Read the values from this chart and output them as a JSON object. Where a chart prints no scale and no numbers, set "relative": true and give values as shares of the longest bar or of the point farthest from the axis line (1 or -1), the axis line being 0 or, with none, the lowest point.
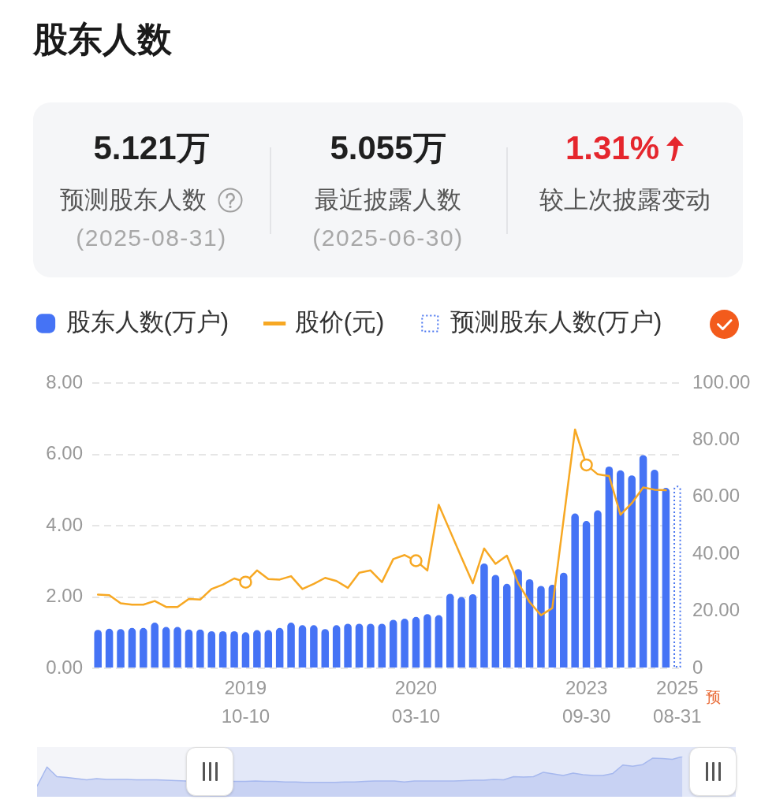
{
  "chart_data": [
    {
      "type": "other",
      "title": "股东人数",
      "annotations": [
        "5.121万",
        "预测股东人数",
        "(2025-08-31)",
        "5.055万",
        "最近披露人数",
        "(2025-06-30)",
        "1.31%",
        "较上次披露变动"
      ]
    },
    {
      "type": "bar",
      "categories": [
        null,
        null,
        null,
        null,
        null,
        null,
        null,
        null,
        null,
        null,
        null,
        null,
        null,
        "2019\n10-10",
        null,
        null,
        null,
        null,
        null,
        null,
        null,
        null,
        null,
        null,
        null,
        null,
        null,
        null,
        "2020\n03-10",
        null,
        null,
        null,
        null,
        null,
        null,
        null,
        null,
        null,
        null,
        null,
        null,
        null,
        null,
        "2023\n09-30",
        null,
        null,
        null,
        null,
        null,
        null,
        null,
        "2025\n08-31"
      ],
      "series": [
        {
          "name": "股东人数(万户)",
          "type": "bar",
          "color": "#4573f5",
          "values": [
            1.08,
            1.11,
            1.1,
            1.13,
            1.13,
            1.28,
            1.16,
            1.16,
            1.09,
            1.09,
            1.04,
            1.04,
            1.04,
            1.01,
            1.07,
            1.07,
            1.13,
            1.28,
            1.21,
            1.21,
            1.1,
            1.21,
            1.25,
            1.25,
            1.25,
            1.25,
            1.36,
            1.39,
            1.44,
            1.52,
            1.49,
            2.09,
            2.0,
            2.08,
            2.94,
            2.62,
            2.37,
            2.78,
            2.5,
            2.31,
            2.34,
            2.68,
            4.34,
            4.13,
            4.43,
            5.66,
            5.55,
            5.41,
            5.98,
            5.57,
            5.06,
            null
          ]
        },
        {
          "name": "股价(元)",
          "type": "line",
          "axis": "y2",
          "color": "#f7a823",
          "values": [
            25.8,
            25.6,
            22.8,
            22.3,
            22.3,
            23.6,
            21.5,
            21.5,
            24.3,
            24.1,
            27.8,
            29.3,
            31.5,
            30.2,
            34.3,
            31.3,
            31.1,
            32.3,
            27.8,
            29.6,
            31.7,
            30.6,
            28.2,
            33.5,
            34.3,
            30.2,
            38.3,
            39.7,
            37.7,
            34.3,
            57.3,
            48.1,
            38.9,
            29.8,
            42.0,
            36.6,
            39.5,
            29.8,
            23.2,
            18.6,
            21.1,
            52.4,
            83.7,
            71.3,
            68.0,
            67.4,
            53.8,
            57.9,
            63.4,
            62.6,
            62.4,
            null
          ]
        },
        {
          "name": "预测股东人数(万户)",
          "type": "bar",
          "color": "#4a76f0",
          "line_style": "dotted",
          "values": [
            null,
            null,
            null,
            null,
            null,
            null,
            null,
            null,
            null,
            null,
            null,
            null,
            null,
            null,
            null,
            null,
            null,
            null,
            null,
            null,
            null,
            null,
            null,
            null,
            null,
            null,
            null,
            null,
            null,
            null,
            null,
            null,
            null,
            null,
            null,
            null,
            null,
            null,
            null,
            null,
            null,
            null,
            null,
            null,
            null,
            null,
            null,
            null,
            null,
            null,
            null,
            5.12
          ]
        },
        {
          "type": "scatter",
          "axis": "y2",
          "color": "#f7a823",
          "marker": "circle",
          "x": [
            "2019\n10-10",
            "2020\n03-10",
            "2023\n09-30"
          ],
          "values": [
            30.2,
            37.7,
            71.3
          ]
        }
      ],
      "ylim": [
        0,
        8
      ],
      "yticks": [
        {
          "value": 0,
          "label": "0.00"
        },
        {
          "value": 2,
          "label": "2.00"
        },
        {
          "value": 4,
          "label": "4.00"
        },
        {
          "value": 6,
          "label": "6.00"
        },
        {
          "value": 8,
          "label": "8.00"
        }
      ],
      "y2lim": [
        0,
        100
      ],
      "y2ticks": [
        0,
        {
          "value": 20,
          "label": "20.00"
        },
        {
          "value": 40,
          "label": "40.00"
        },
        {
          "value": 60,
          "label": "60.00"
        },
        {
          "value": 80,
          "label": "80.00"
        },
        {
          "value": 100,
          "label": "100.00"
        }
      ],
      "grid": "y",
      "legend": "top left",
      "annotations": [
        "预"
      ]
    },
    {
      "type": "area",
      "relative": true,
      "color": "#a6b8ee",
      "categories": [
        null,
        null,
        null,
        null,
        null,
        null,
        null,
        null,
        null,
        null,
        null,
        null,
        null,
        null,
        null,
        null,
        null,
        null,
        null,
        null,
        null,
        null,
        null,
        null,
        null,
        null,
        null,
        null,
        null,
        null,
        null,
        null,
        null,
        null,
        null,
        null,
        null,
        null,
        null,
        null,
        null,
        null,
        null,
        null,
        null,
        null,
        null,
        null,
        null,
        null,
        null,
        null,
        null,
        null,
        null,
        null,
        null,
        null,
        null,
        null,
        null,
        null,
        null,
        null,
        null,
        null,
        null,
        null,
        null
      ],
      "values": [
        0.26,
        0.74,
        0.5,
        0.48,
        0.45,
        0.42,
        0.45,
        0.43,
        0.43,
        0.43,
        0.42,
        0.42,
        0.42,
        0.41,
        0.4,
        0.39,
        null,
        null,
        null,
        null,
        0.38,
        0.38,
        0.39,
        0.38,
        0.38,
        0.37,
        0.37,
        0.36,
        0.36,
        0.36,
        0.36,
        0.37,
        0.37,
        0.38,
        0.39,
        0.39,
        0.39,
        0.37,
        0.39,
        0.39,
        0.39,
        0.39,
        0.39,
        0.4,
        0.41,
        0.41,
        0.43,
        0.42,
        0.5,
        0.49,
        0.5,
        0.61,
        0.57,
        0.53,
        0.59,
        0.55,
        0.53,
        0.53,
        0.58,
        0.79,
        0.76,
        0.8,
        0.96,
        0.95,
        0.93,
        1,
        null,
        null,
        null
      ]
    }
  ]
}
